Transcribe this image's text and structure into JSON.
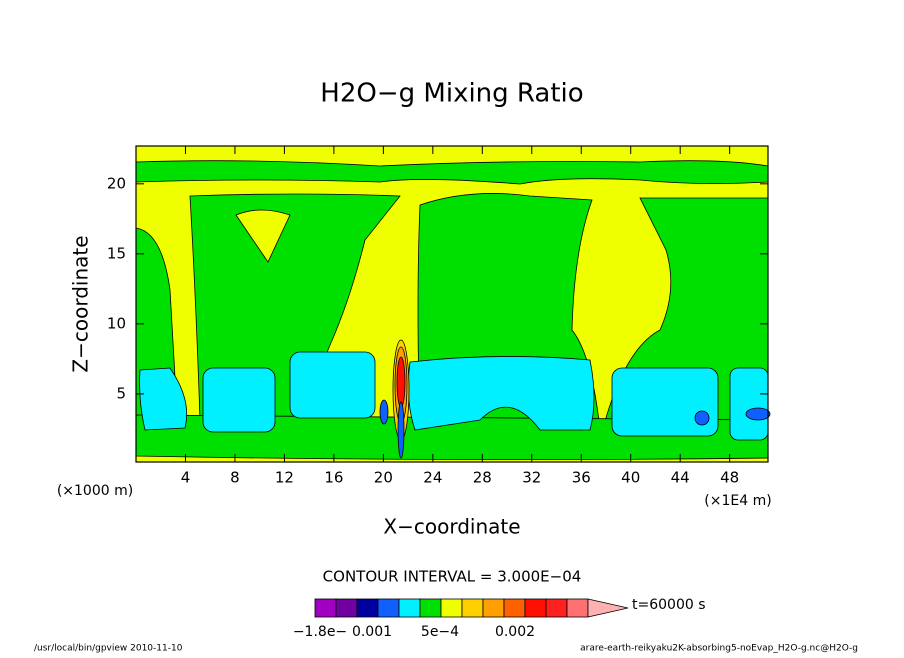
{
  "chart_data": {
    "type": "contour",
    "title": "H2O−g Mixing Ratio",
    "xlabel": "X−coordinate",
    "ylabel": "Z−coordinate",
    "x_unit_left": "(×1000 m)",
    "x_unit_right": "(×1E4 m)",
    "xlim": [
      0,
      51.1
    ],
    "ylim": [
      0.14,
      22.7
    ],
    "xticks": [
      4,
      8,
      12,
      16,
      20,
      24,
      28,
      32,
      36,
      40,
      44,
      48
    ],
    "yticks": [
      5,
      10,
      15,
      20
    ],
    "contour_interval": "CONTOUR INTERVAL = 3.000E−04",
    "colorbar": {
      "colors": [
        "#a000c0",
        "#7000a0",
        "#0000a0",
        "#1060ff",
        "#00f0ff",
        "#00e000",
        "#f0ff00",
        "#ffd000",
        "#ffa000",
        "#ff6000",
        "#ff1000",
        "#ff2020",
        "#ff7070",
        "#ffb0b0"
      ],
      "labels": [
        "−1.8e−",
        "0.001",
        "5e−4",
        "0.002"
      ]
    },
    "time": "t=60000 s"
  },
  "footer": {
    "left": "/usr/local/bin/gpview  2010-11-10",
    "right": "arare-earth-reikyaku2K-absorbing5-noEvap_H2O-g.nc@H2O-g"
  }
}
